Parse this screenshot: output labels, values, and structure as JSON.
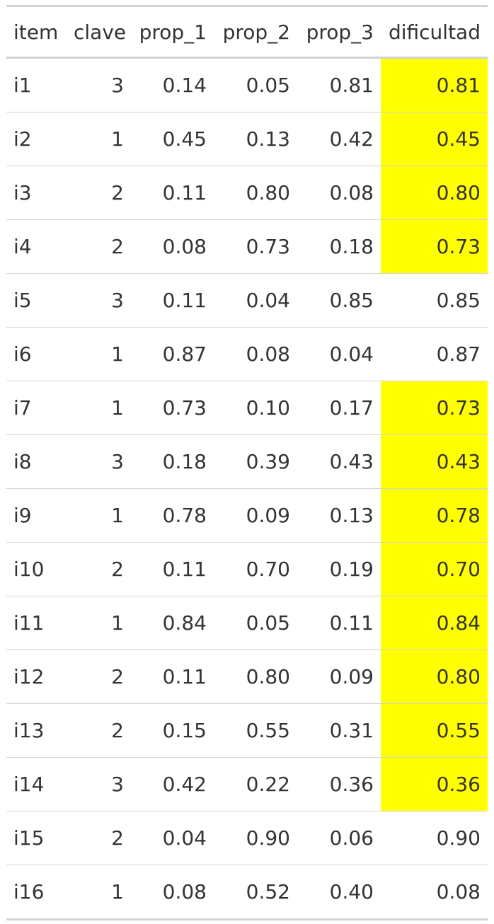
{
  "table": {
    "headers": [
      "item",
      "clave",
      "prop_1",
      "prop_2",
      "prop_3",
      "dificultad"
    ],
    "highlight_color": "#ffff00",
    "rows": [
      {
        "item": "i1",
        "clave": "3",
        "prop_1": "0.14",
        "prop_2": "0.05",
        "prop_3": "0.81",
        "dificultad": "0.81",
        "highlighted": true
      },
      {
        "item": "i2",
        "clave": "1",
        "prop_1": "0.45",
        "prop_2": "0.13",
        "prop_3": "0.42",
        "dificultad": "0.45",
        "highlighted": true
      },
      {
        "item": "i3",
        "clave": "2",
        "prop_1": "0.11",
        "prop_2": "0.80",
        "prop_3": "0.08",
        "dificultad": "0.80",
        "highlighted": true
      },
      {
        "item": "i4",
        "clave": "2",
        "prop_1": "0.08",
        "prop_2": "0.73",
        "prop_3": "0.18",
        "dificultad": "0.73",
        "highlighted": true
      },
      {
        "item": "i5",
        "clave": "3",
        "prop_1": "0.11",
        "prop_2": "0.04",
        "prop_3": "0.85",
        "dificultad": "0.85",
        "highlighted": false
      },
      {
        "item": "i6",
        "clave": "1",
        "prop_1": "0.87",
        "prop_2": "0.08",
        "prop_3": "0.04",
        "dificultad": "0.87",
        "highlighted": false
      },
      {
        "item": "i7",
        "clave": "1",
        "prop_1": "0.73",
        "prop_2": "0.10",
        "prop_3": "0.17",
        "dificultad": "0.73",
        "highlighted": true
      },
      {
        "item": "i8",
        "clave": "3",
        "prop_1": "0.18",
        "prop_2": "0.39",
        "prop_3": "0.43",
        "dificultad": "0.43",
        "highlighted": true
      },
      {
        "item": "i9",
        "clave": "1",
        "prop_1": "0.78",
        "prop_2": "0.09",
        "prop_3": "0.13",
        "dificultad": "0.78",
        "highlighted": true
      },
      {
        "item": "i10",
        "clave": "2",
        "prop_1": "0.11",
        "prop_2": "0.70",
        "prop_3": "0.19",
        "dificultad": "0.70",
        "highlighted": true
      },
      {
        "item": "i11",
        "clave": "1",
        "prop_1": "0.84",
        "prop_2": "0.05",
        "prop_3": "0.11",
        "dificultad": "0.84",
        "highlighted": true
      },
      {
        "item": "i12",
        "clave": "2",
        "prop_1": "0.11",
        "prop_2": "0.80",
        "prop_3": "0.09",
        "dificultad": "0.80",
        "highlighted": true
      },
      {
        "item": "i13",
        "clave": "2",
        "prop_1": "0.15",
        "prop_2": "0.55",
        "prop_3": "0.31",
        "dificultad": "0.55",
        "highlighted": true
      },
      {
        "item": "i14",
        "clave": "3",
        "prop_1": "0.42",
        "prop_2": "0.22",
        "prop_3": "0.36",
        "dificultad": "0.36",
        "highlighted": true
      },
      {
        "item": "i15",
        "clave": "2",
        "prop_1": "0.04",
        "prop_2": "0.90",
        "prop_3": "0.06",
        "dificultad": "0.90",
        "highlighted": false
      },
      {
        "item": "i16",
        "clave": "1",
        "prop_1": "0.08",
        "prop_2": "0.52",
        "prop_3": "0.40",
        "dificultad": "0.08",
        "highlighted": false
      }
    ]
  }
}
